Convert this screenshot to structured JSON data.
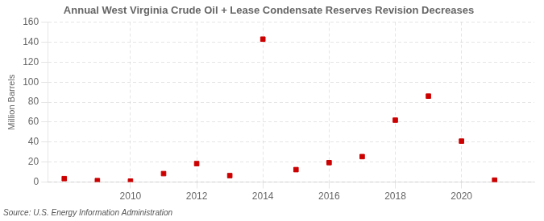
{
  "chart_data": {
    "type": "scatter",
    "title": "Annual West Virginia Crude Oil + Lease Condensate Reserves Revision Decreases",
    "ylabel": "Million Barrels",
    "annotations": [
      "Source: U.S. Energy Information Administration"
    ],
    "x": [
      2008,
      2009,
      2010,
      2011,
      2012,
      2013,
      2014,
      2015,
      2016,
      2017,
      2018,
      2019,
      2020,
      2021
    ],
    "values": [
      3.5,
      1.5,
      1.0,
      8.5,
      18.5,
      6.5,
      143.0,
      12.5,
      19.5,
      25.5,
      62.0,
      86.0,
      41.0,
      2.0
    ],
    "color": "#cc0000",
    "marker": "square",
    "xlim": [
      2007.5,
      2022.2
    ],
    "xticks": [
      2010,
      2012,
      2014,
      2016,
      2018,
      2020
    ],
    "ylim": [
      0,
      160
    ],
    "yticks": [
      0,
      20,
      40,
      60,
      80,
      100,
      120,
      140,
      160
    ],
    "grid": true
  }
}
